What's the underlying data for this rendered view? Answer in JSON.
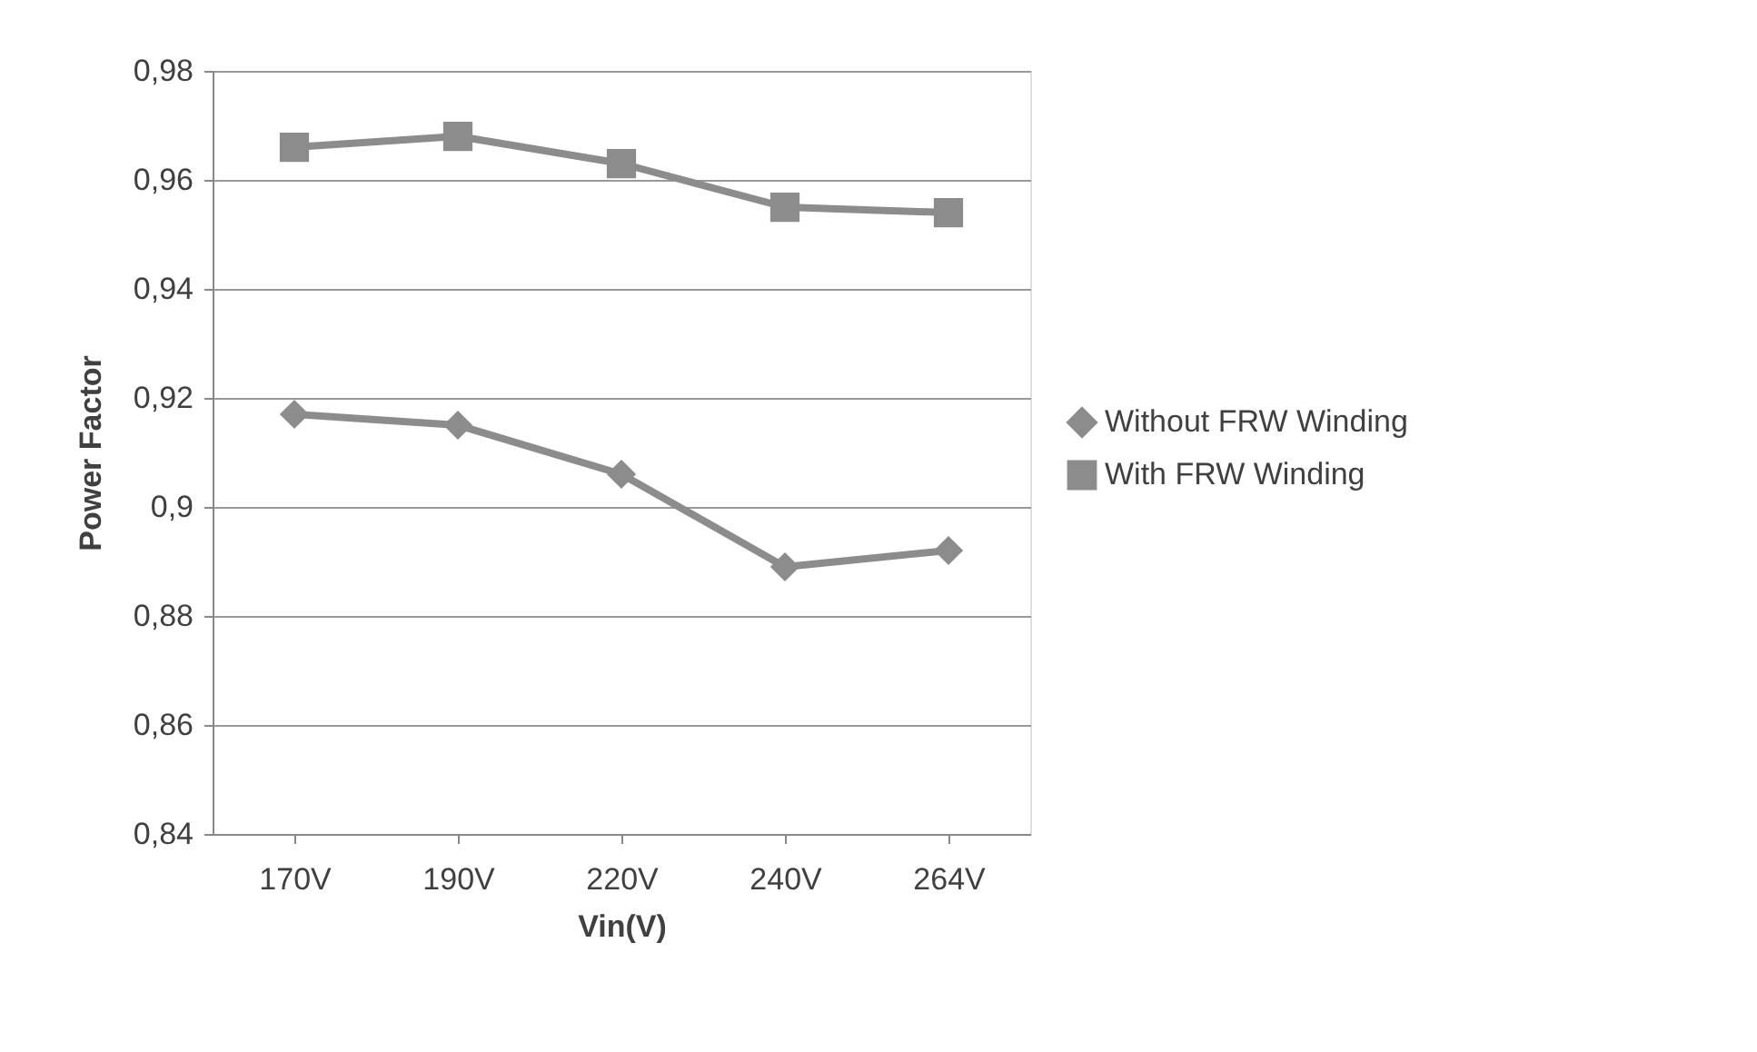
{
  "chart_data": {
    "type": "line",
    "xlabel": "Vin(V)",
    "ylabel": "Power Factor",
    "categories": [
      "170V",
      "190V",
      "220V",
      "240V",
      "264V"
    ],
    "series": [
      {
        "name": "Without FRW Winding",
        "color": "#8c8c8c",
        "marker": "diamond",
        "values": [
          0.917,
          0.915,
          0.906,
          0.889,
          0.892
        ]
      },
      {
        "name": "With FRW Winding",
        "color": "#8c8c8c",
        "marker": "square",
        "values": [
          0.966,
          0.968,
          0.963,
          0.955,
          0.954
        ]
      }
    ],
    "ylim": [
      0.84,
      0.98
    ],
    "yticks": [
      {
        "value": 0.84,
        "label": "0,84"
      },
      {
        "value": 0.86,
        "label": "0,86"
      },
      {
        "value": 0.88,
        "label": "0,88"
      },
      {
        "value": 0.9,
        "label": "0,9"
      },
      {
        "value": 0.92,
        "label": "0,92"
      },
      {
        "value": 0.94,
        "label": "0,94"
      },
      {
        "value": 0.96,
        "label": "0,96"
      },
      {
        "value": 0.98,
        "label": "0,98"
      }
    ],
    "grid": "y",
    "legend": "right",
    "line_style": "solid"
  }
}
